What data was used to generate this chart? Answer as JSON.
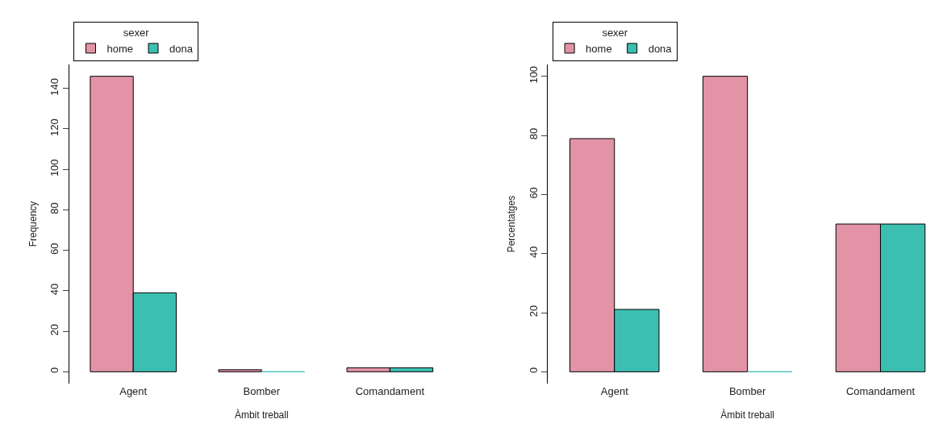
{
  "chart_data": [
    {
      "type": "bar",
      "categories": [
        "Agent",
        "Bomber",
        "Comandament"
      ],
      "xlabel": "Àmbit treball",
      "ylabel": "Frequency",
      "legend_title": "sexer",
      "legend": "top left",
      "ylim": [
        -5.84,
        151.84
      ],
      "yticks": [
        0,
        20,
        40,
        60,
        80,
        100,
        120,
        140
      ],
      "series": [
        {
          "name": "home",
          "color": "#e293a6",
          "values": [
            146,
            1,
            2
          ]
        },
        {
          "name": "dona",
          "color": "#3cbfb1",
          "values": [
            39,
            0,
            2
          ]
        }
      ]
    },
    {
      "type": "bar",
      "categories": [
        "Agent",
        "Bomber",
        "Comandament"
      ],
      "xlabel": "Àmbit treball",
      "ylabel": "Percentatges",
      "legend_title": "sexer",
      "legend": "top left",
      "ylim": [
        -4,
        104
      ],
      "yticks": [
        0,
        20,
        40,
        60,
        80,
        100
      ],
      "series": [
        {
          "name": "home",
          "color": "#e293a6",
          "values": [
            78.9,
            100,
            50
          ]
        },
        {
          "name": "dona",
          "color": "#3cbfb1",
          "values": [
            21.1,
            0,
            50
          ]
        }
      ]
    }
  ]
}
